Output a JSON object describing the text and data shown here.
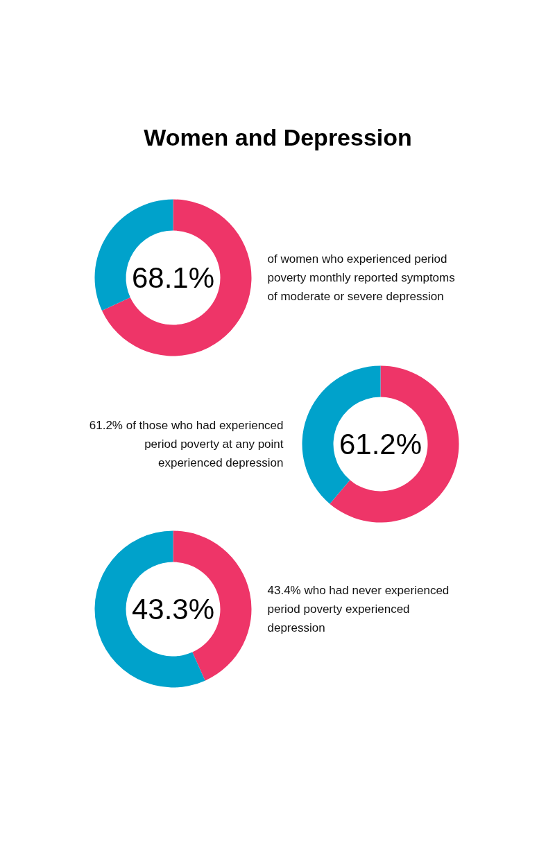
{
  "chart_data": [
    {
      "type": "donut",
      "title": "Women and Depression",
      "categories": [
        null,
        null
      ],
      "values": [
        68.1,
        31.9
      ],
      "colors": [
        "#ee3568",
        "#00a2cb"
      ],
      "annotations": [
        "68.1%",
        "of women who experienced period\npoverty monthly reported symptoms\nof moderate or severe depression"
      ]
    },
    {
      "type": "donut",
      "categories": [
        null,
        null
      ],
      "values": [
        61.2,
        38.8
      ],
      "colors": [
        "#ee3568",
        "#00a2cb"
      ],
      "annotations": [
        "61.2%",
        "61.2% of those who had experienced\nperiod poverty at any point\nexperienced depression"
      ]
    },
    {
      "type": "donut",
      "categories": [
        null,
        null
      ],
      "values": [
        43.3,
        56.7
      ],
      "colors": [
        "#ee3568",
        "#00a2cb"
      ],
      "annotations": [
        "43.3%",
        "43.4% who had never experienced\nperiod poverty experienced\ndepression"
      ]
    }
  ]
}
